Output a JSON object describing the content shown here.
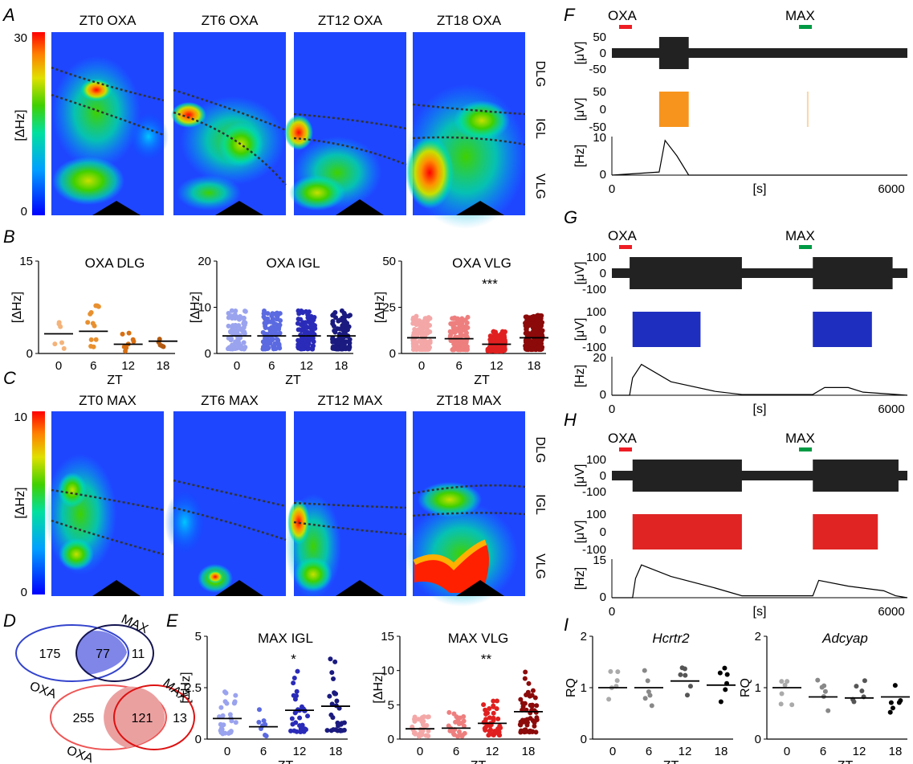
{
  "panel_labels": [
    "A",
    "B",
    "C",
    "D",
    "E",
    "F",
    "G",
    "H",
    "I"
  ],
  "heatmaps_top": {
    "titles": [
      "ZT0 OXA",
      "ZT6 OXA",
      "ZT12 OXA",
      "ZT18 OXA"
    ],
    "colorbar_max": "30",
    "colorbar_min": "0",
    "colorbar_label": "[ΔHz]",
    "regions": [
      "DLG",
      "IGL",
      "VLG"
    ]
  },
  "heatmaps_bottom": {
    "titles": [
      "ZT0 MAX",
      "ZT6 MAX",
      "ZT12 MAX",
      "ZT18 MAX"
    ],
    "colorbar_max": "10",
    "colorbar_min": "0",
    "colorbar_label": "[ΔHz]",
    "regions": [
      "DLG",
      "IGL",
      "VLG"
    ]
  },
  "colors": {
    "zt0_orange": "#f4b37a",
    "zt6_orange": "#e8902f",
    "zt12_orange": "#d86f12",
    "zt18_orange": "#b35a10",
    "zt0_blue": "#9aa3ee",
    "zt6_blue": "#5b6ae0",
    "zt12_blue": "#2a2bb8",
    "zt18_blue": "#1a1a80",
    "zt0_red": "#f4a7a7",
    "zt6_red": "#ee7f7f",
    "zt12_red": "#e02020",
    "zt18_red": "#8c0a0a",
    "oxa_bar": "#ee1c24",
    "max_bar": "#009a44",
    "trace": "#222222",
    "orange_trace": "#f7941d",
    "blue_trace": "#1e2fbf",
    "red_trace": "#e02424"
  },
  "chart_data": [
    {
      "type": "scatter",
      "title": "OXA DLG",
      "xlabel": "ZT",
      "ylabel": "[ΔHz]",
      "categories": [
        "0",
        "6",
        "12",
        "18"
      ],
      "ylim": [
        0,
        15
      ],
      "yticks": [
        "0",
        "15"
      ],
      "medians": [
        3.2,
        3.6,
        1.5,
        2.0
      ]
    },
    {
      "type": "scatter",
      "title": "OXA IGL",
      "xlabel": "ZT",
      "ylabel": "[ΔHz]",
      "categories": [
        "0",
        "6",
        "12",
        "18"
      ],
      "ylim": [
        0,
        20
      ],
      "yticks": [
        "0",
        "10",
        "20"
      ],
      "medians": [
        3.8,
        3.8,
        3.8,
        3.8
      ]
    },
    {
      "type": "scatter",
      "title": "OXA VLG",
      "xlabel": "ZT",
      "ylabel": "[ΔHz]",
      "categories": [
        "0",
        "6",
        "12",
        "18"
      ],
      "ylim": [
        0,
        50
      ],
      "yticks": [
        "0",
        "25",
        "50"
      ],
      "medians": [
        8.5,
        8.0,
        5.0,
        8.5
      ],
      "annotation": "***"
    },
    {
      "type": "scatter",
      "title": "MAX IGL",
      "xlabel": "ZT",
      "ylabel": "[ΔHz]",
      "categories": [
        "0",
        "6",
        "12",
        "18"
      ],
      "ylim": [
        0,
        5
      ],
      "yticks": [
        "0",
        "2.5",
        "5"
      ],
      "medians": [
        1.0,
        0.6,
        1.4,
        1.6
      ],
      "annotation": "*"
    },
    {
      "type": "scatter",
      "title": "MAX VLG",
      "xlabel": "ZT",
      "ylabel": "[ΔHz]",
      "categories": [
        "0",
        "6",
        "12",
        "18"
      ],
      "ylim": [
        0,
        15
      ],
      "yticks": [
        "0",
        "5",
        "10",
        "15"
      ],
      "medians": [
        1.5,
        1.6,
        2.3,
        4.0
      ],
      "annotation": "**"
    },
    {
      "type": "scatter",
      "title": "Hcrtr2",
      "xlabel": "ZT",
      "ylabel": "RQ",
      "categories": [
        "0",
        "6",
        "12",
        "18"
      ],
      "ylim": [
        0,
        2
      ],
      "yticks": [
        "0",
        "1",
        "2"
      ],
      "medians": [
        1.0,
        1.0,
        1.13,
        1.05
      ]
    },
    {
      "type": "scatter",
      "title": "Adcyap",
      "xlabel": "ZT",
      "ylabel": "RQ",
      "categories": [
        "0",
        "6",
        "12",
        "18"
      ],
      "ylim": [
        0,
        2
      ],
      "yticks": [
        "0",
        "1",
        "2"
      ],
      "medians": [
        1.0,
        0.82,
        0.8,
        0.82
      ]
    }
  ],
  "venn": [
    {
      "left": "175",
      "mid": "77",
      "right": "11",
      "label_a": "OXA",
      "label_b": "MAX"
    },
    {
      "left": "255",
      "mid": "121",
      "right": "13",
      "label_a": "OXA",
      "label_b": "MAX"
    }
  ],
  "traces": {
    "oxa": "OXA",
    "max": "MAX",
    "uv": "[μV]",
    "hz": "[Hz]",
    "s": "[s]",
    "F": {
      "uv_ticks": [
        "50",
        "0",
        "-50"
      ],
      "hz_ticks": [
        "10",
        "0"
      ],
      "x_ticks": [
        "0",
        "6000"
      ]
    },
    "G": {
      "uv_ticks": [
        "100",
        "0",
        "-100"
      ],
      "hz_ticks": [
        "20",
        "0"
      ],
      "x_ticks": [
        "0",
        "6000"
      ]
    },
    "H": {
      "uv_ticks": [
        "100",
        "0",
        "-100"
      ],
      "hz_ticks": [
        "15",
        "0"
      ],
      "x_ticks": [
        "0",
        "6000"
      ]
    }
  }
}
